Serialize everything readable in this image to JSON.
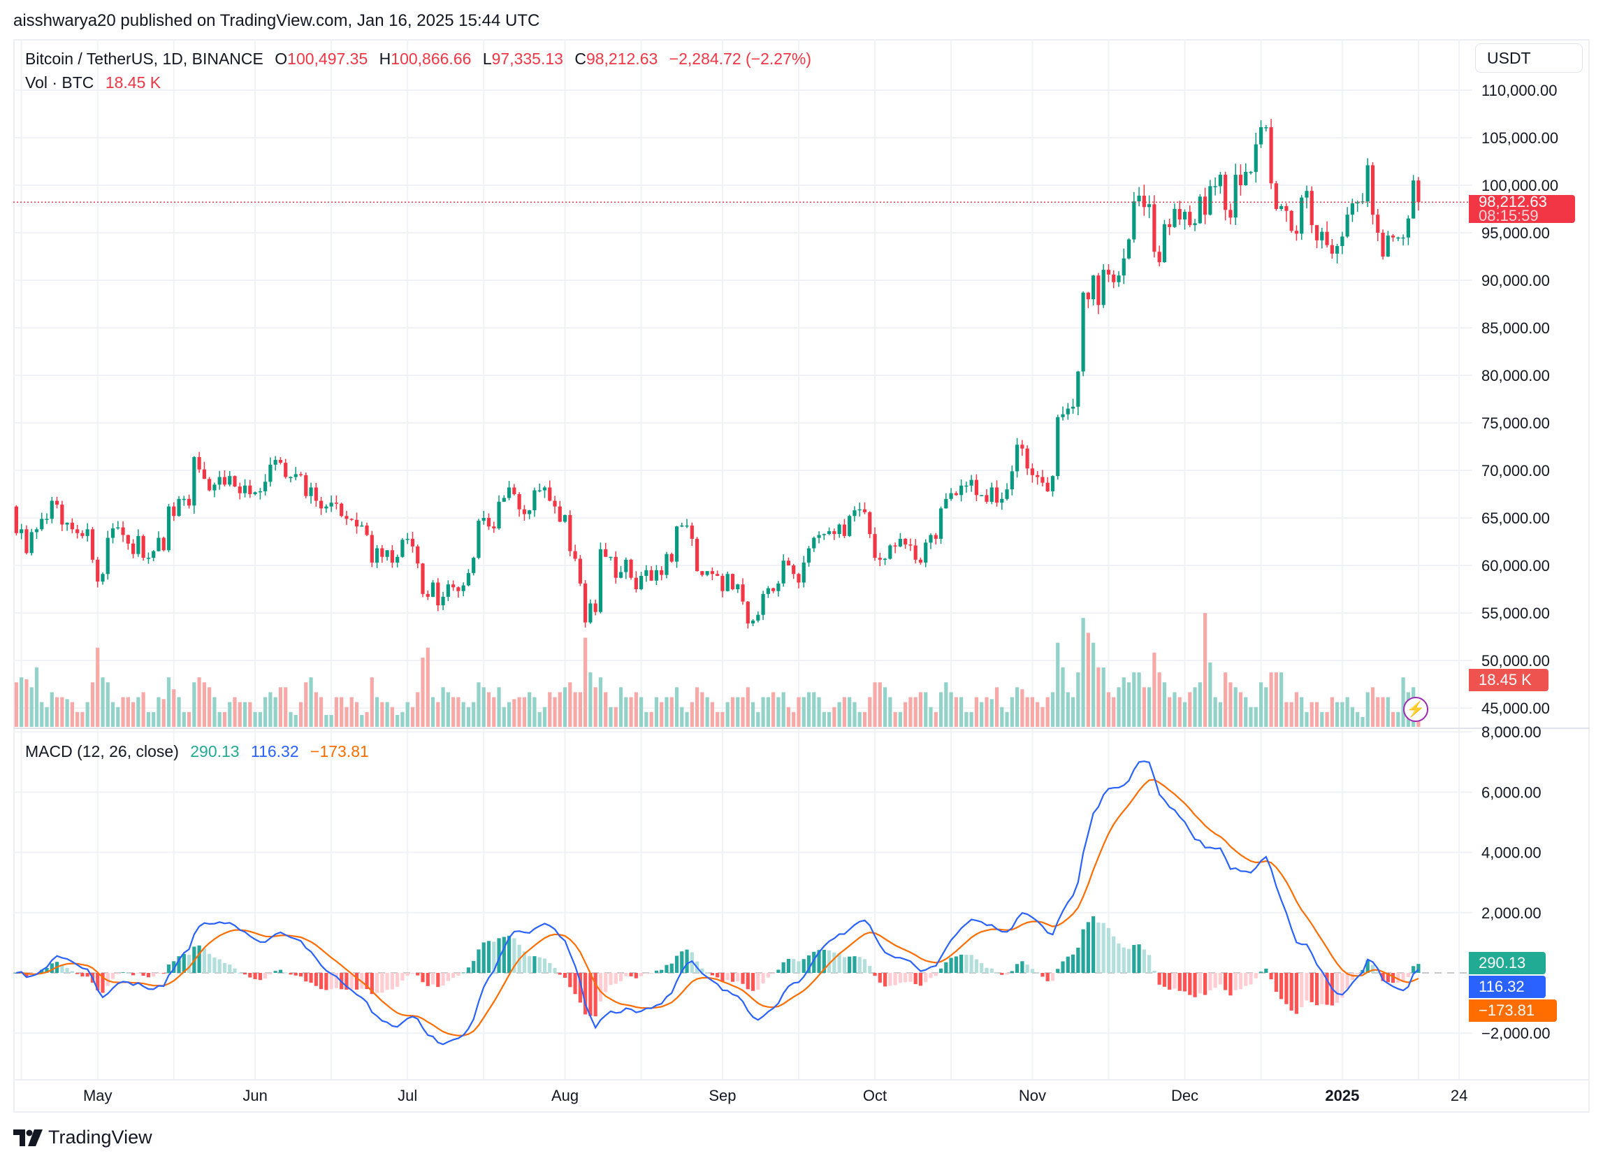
{
  "header": {
    "published": "aisshwarya20 published on TradingView.com, Jan 16, 2025 15:44 UTC"
  },
  "legend": {
    "symbol": "Bitcoin / TetherUS, 1D, BINANCE",
    "o_label": "O",
    "o": "100,497.35",
    "h_label": "H",
    "h": "100,866.66",
    "l_label": "L",
    "l": "97,335.13",
    "c_label": "C",
    "c": "98,212.63",
    "change": "−2,284.72 (−2.27%)",
    "vol_label": "Vol · BTC",
    "vol": "18.45 K"
  },
  "macd_legend": {
    "title": "MACD (12, 26, close)",
    "histogram": "290.13",
    "macd": "116.32",
    "signal": "−173.81"
  },
  "currency_button": "USDT",
  "price_tag": {
    "price": "98,212.63",
    "countdown": "08:15:59"
  },
  "volume_tag": "18.45 K",
  "macd_tags": {
    "histogram": "290.13",
    "macd": "116.32",
    "signal": "−173.81"
  },
  "brand": "TradingView",
  "icons": {
    "alert": "lightning-icon",
    "logo": "tradingview-logo-icon"
  },
  "colors": {
    "up": "#089981",
    "down": "#f23645",
    "macd": "#2962ff",
    "signal": "#ff6d00",
    "hist_up_strong": "#26a69a",
    "hist_up_weak": "#b2dfdb",
    "hist_down_strong": "#ff5252",
    "hist_down_weak": "#ffcdd2"
  },
  "chart_data": {
    "type": "candlestick",
    "interval": "1D",
    "first_date": "2024-04-15",
    "first_open": 66200,
    "last_ohlc": {
      "open": 100497.35,
      "high": 100866.66,
      "low": 97335.13,
      "close": 98212.63
    },
    "close": [
      63400,
      63800,
      61300,
      63500,
      63800,
      64900,
      64900,
      66800,
      66400,
      64300,
      64500,
      63800,
      63400,
      63100,
      63800,
      60600,
      58300,
      59100,
      62900,
      63900,
      64000,
      63200,
      62300,
      61200,
      63100,
      60800,
      60800,
      61500,
      62900,
      61600,
      66200,
      65200,
      67000,
      67000,
      66300,
      71400,
      70100,
      69100,
      67900,
      68500,
      69300,
      68500,
      69400,
      68300,
      67600,
      68400,
      67500,
      67700,
      67800,
      68800,
      70600,
      71100,
      70800,
      69300,
      69300,
      69600,
      69500,
      67300,
      68200,
      66800,
      66000,
      66200,
      66600,
      66500,
      65200,
      64900,
      64800,
      64100,
      64200,
      63200,
      60300,
      61800,
      60900,
      61600,
      60300,
      60900,
      62700,
      62800,
      62000,
      60200,
      57000,
      56700,
      58200,
      55800,
      56700,
      58000,
      57700,
      57300,
      57900,
      59200,
      60800,
      64700,
      65000,
      64100,
      63900,
      66700,
      67100,
      68200,
      67500,
      65900,
      65400,
      65800,
      67900,
      67900,
      68200,
      66800,
      66200,
      64600,
      65300,
      61500,
      60700,
      58100,
      54000,
      56000,
      55100,
      61700,
      60900,
      60900,
      58700,
      59300,
      60600,
      58700,
      57500,
      58900,
      59500,
      58400,
      59500,
      59000,
      61200,
      60400,
      64100,
      64200,
      64200,
      62800,
      59400,
      59000,
      59400,
      59100,
      58900,
      57300,
      59100,
      57500,
      58000,
      56200,
      53900,
      54200,
      54800,
      57000,
      57600,
      57300,
      58100,
      60500,
      60000,
      59100,
      58200,
      60300,
      61800,
      62900,
      63200,
      63300,
      63600,
      63300,
      64300,
      63100,
      65200,
      65800,
      65900,
      65600,
      63300,
      60800,
      60600,
      60700,
      62100,
      62000,
      62800,
      62200,
      62100,
      60600,
      60300,
      62400,
      63200,
      62800,
      66000,
      67000,
      67600,
      67400,
      68400,
      68400,
      69000,
      67400,
      67400,
      66700,
      68200,
      66600,
      67000,
      68000,
      69900,
      72700,
      72300,
      70200,
      69500,
      69300,
      68700,
      67800,
      69400,
      75600,
      75900,
      76500,
      76700,
      80400,
      88700,
      88000,
      90500,
      87400,
      91100,
      90600,
      89800,
      90500,
      92300,
      94300,
      98300,
      98900,
      97700,
      98000,
      93000,
      91900,
      95900,
      95600,
      97500,
      96400,
      97200,
      95800,
      96000,
      98800,
      96900,
      99900,
      99900,
      101100,
      97400,
      96600,
      101100,
      100000,
      101400,
      101400,
      104300,
      106100,
      106100,
      100200,
      97500,
      97800,
      97300,
      95200,
      94900,
      98700,
      99400,
      95800,
      94200,
      95100,
      93700,
      92800,
      93600,
      94600,
      96900,
      98100,
      98200,
      98300,
      102100,
      96900,
      95000,
      92500,
      94700,
      94500,
      94500,
      94500,
      96500,
      100497.35,
      98212.63
    ],
    "volume_k": [
      45,
      50,
      48,
      40,
      60,
      25,
      20,
      35,
      30,
      30,
      28,
      25,
      15,
      15,
      25,
      45,
      80,
      50,
      45,
      25,
      20,
      30,
      30,
      25,
      30,
      35,
      15,
      15,
      30,
      28,
      50,
      38,
      30,
      15,
      15,
      45,
      50,
      45,
      40,
      30,
      15,
      15,
      25,
      30,
      25,
      25,
      25,
      15,
      15,
      30,
      35,
      30,
      40,
      40,
      15,
      12,
      25,
      45,
      50,
      35,
      30,
      12,
      12,
      30,
      30,
      20,
      30,
      25,
      12,
      15,
      50,
      30,
      25,
      25,
      20,
      12,
      15,
      25,
      20,
      35,
      70,
      80,
      30,
      25,
      40,
      35,
      30,
      30,
      25,
      20,
      25,
      45,
      40,
      35,
      30,
      40,
      20,
      25,
      28,
      30,
      30,
      35,
      30,
      15,
      20,
      35,
      30,
      35,
      40,
      45,
      35,
      35,
      90,
      55,
      40,
      50,
      35,
      20,
      20,
      40,
      30,
      30,
      35,
      30,
      15,
      15,
      30,
      25,
      30,
      30,
      40,
      20,
      15,
      25,
      40,
      35,
      30,
      25,
      15,
      15,
      25,
      30,
      30,
      30,
      40,
      25,
      15,
      30,
      30,
      35,
      30,
      35,
      20,
      15,
      30,
      30,
      35,
      35,
      30,
      15,
      15,
      20,
      25,
      30,
      30,
      25,
      15,
      15,
      30,
      45,
      45,
      40,
      30,
      15,
      15,
      25,
      30,
      30,
      35,
      35,
      20,
      15,
      35,
      45,
      35,
      30,
      30,
      15,
      15,
      30,
      25,
      30,
      28,
      40,
      20,
      15,
      30,
      40,
      38,
      30,
      30,
      25,
      20,
      30,
      35,
      85,
      60,
      35,
      30,
      55,
      110,
      95,
      85,
      60,
      60,
      35,
      30,
      40,
      50,
      45,
      55,
      55,
      40,
      40,
      75,
      55,
      45,
      30,
      35,
      30,
      25,
      35,
      40,
      45,
      115,
      65,
      30,
      25,
      55,
      45,
      40,
      35,
      30,
      20,
      20,
      45,
      40,
      55,
      55,
      55,
      25,
      25,
      35,
      30,
      15,
      25,
      25,
      15,
      15,
      30,
      25,
      25,
      30,
      20,
      15,
      10,
      35,
      40,
      30,
      30,
      30,
      15,
      15,
      50,
      35,
      40,
      18.45
    ],
    "price_axis": {
      "ylim": [
        42000,
        112500
      ],
      "ticks": [
        {
          "v": 110000,
          "label": "110,000.00"
        },
        {
          "v": 105000,
          "label": "105,000.00"
        },
        {
          "v": 100000,
          "label": "100,000.00"
        },
        {
          "v": 95000,
          "label": "95,000.00"
        },
        {
          "v": 90000,
          "label": "90,000.00"
        },
        {
          "v": 85000,
          "label": "85,000.00"
        },
        {
          "v": 80000,
          "label": "80,000.00"
        },
        {
          "v": 75000,
          "label": "75,000.00"
        },
        {
          "v": 70000,
          "label": "70,000.00"
        },
        {
          "v": 65000,
          "label": "65,000.00"
        },
        {
          "v": 60000,
          "label": "60,000.00"
        },
        {
          "v": 55000,
          "label": "55,000.00"
        },
        {
          "v": 50000,
          "label": "50,000.00"
        },
        {
          "v": 45000,
          "label": "45,000.00"
        }
      ]
    },
    "macd": {
      "fast": 12,
      "slow": 26,
      "signal": 9,
      "source": "close",
      "ylim": [
        -3800,
        8100
      ],
      "ticks": [
        {
          "v": 8000,
          "label": "8,000.00"
        },
        {
          "v": 6000,
          "label": "6,000.00"
        },
        {
          "v": 4000,
          "label": "4,000.00"
        },
        {
          "v": 2000,
          "label": "2,000.00"
        },
        {
          "v": -2000,
          "label": "−2,000.00"
        }
      ]
    },
    "time_axis": [
      {
        "date": "2024-05-01",
        "label": "May"
      },
      {
        "date": "2024-06-01",
        "label": "Jun"
      },
      {
        "date": "2024-07-01",
        "label": "Jul"
      },
      {
        "date": "2024-08-01",
        "label": "Aug"
      },
      {
        "date": "2024-09-01",
        "label": "Sep"
      },
      {
        "date": "2024-10-01",
        "label": "Oct"
      },
      {
        "date": "2024-11-01",
        "label": "Nov"
      },
      {
        "date": "2024-12-01",
        "label": "Dec"
      },
      {
        "date": "2025-01-01",
        "label": "2025",
        "bold": true
      },
      {
        "date": "2025-01-24",
        "label": "24"
      }
    ],
    "last_price": 98212.63
  }
}
